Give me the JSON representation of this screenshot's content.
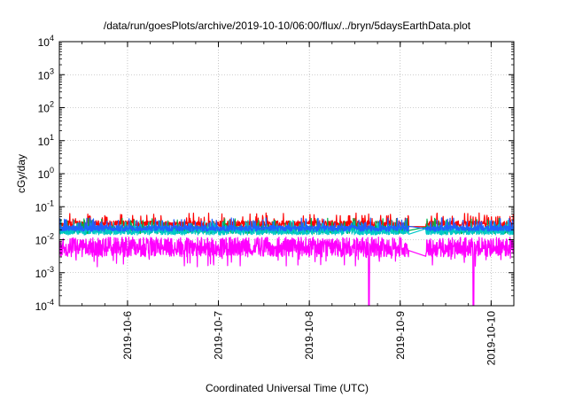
{
  "chart_data": {
    "type": "line",
    "title": "/data/run/goesPlots/archive/2019-10-10/06:00/flux/../bryn/5daysEarthData.plot",
    "xlabel": "Coordinated Universal Time (UTC)",
    "ylabel": "cGy/day",
    "yscale": "log",
    "ylim": [
      0.0001,
      10000
    ],
    "y_ticks": [
      {
        "value": 0.0001,
        "base": "10",
        "exp": "-4"
      },
      {
        "value": 0.001,
        "base": "10",
        "exp": "-3"
      },
      {
        "value": 0.01,
        "base": "10",
        "exp": "-2"
      },
      {
        "value": 0.1,
        "base": "10",
        "exp": "-1"
      },
      {
        "value": 1,
        "base": "10",
        "exp": "0"
      },
      {
        "value": 10,
        "base": "10",
        "exp": "1"
      },
      {
        "value": 100,
        "base": "10",
        "exp": "2"
      },
      {
        "value": 1000,
        "base": "10",
        "exp": "3"
      },
      {
        "value": 10000,
        "base": "10",
        "exp": "4"
      }
    ],
    "xlim": [
      "2019-10-05T06:00",
      "2019-10-10T06:00"
    ],
    "x_ticks": [
      "2019-10-6",
      "2019-10-7",
      "2019-10-8",
      "2019-10-9",
      "2019-10-10"
    ],
    "grid": true,
    "series": [
      {
        "color": "#ff0000",
        "base": 0.03,
        "spread": 0.1,
        "seed": 11,
        "gaps": [
          [
            "2019-10-09T02:15",
            "2019-10-09T06:45"
          ]
        ],
        "dropouts": []
      },
      {
        "color": "#00b34a",
        "base": 0.02,
        "spread": 0.12,
        "seed": 23,
        "gaps": [
          [
            "2019-10-09T02:15",
            "2019-10-09T06:45"
          ]
        ],
        "dropouts": []
      },
      {
        "color": "#00c8c8",
        "base": 0.018,
        "spread": 0.11,
        "seed": 37,
        "gaps": [
          [
            "2019-10-09T02:15",
            "2019-10-09T06:45"
          ]
        ],
        "dropouts": []
      },
      {
        "color": "#2060ff",
        "base": 0.022,
        "spread": 0.09,
        "seed": 41,
        "gaps": [
          [
            "2019-10-09T02:15",
            "2019-10-09T06:45"
          ]
        ],
        "dropouts": []
      },
      {
        "color": "#ff00ff",
        "base": 0.006,
        "spread": 0.3,
        "seed": 59,
        "gaps": [
          [
            "2019-10-09T02:15",
            "2019-10-09T06:45"
          ]
        ],
        "dropouts": [
          "2019-10-08T15:45",
          "2019-10-09T19:20"
        ]
      }
    ]
  }
}
